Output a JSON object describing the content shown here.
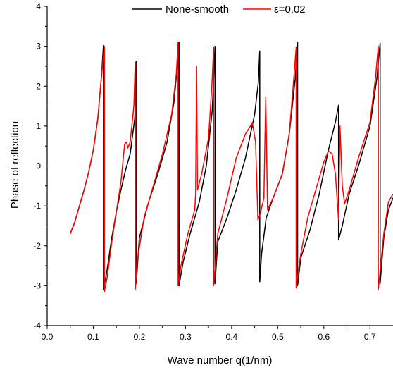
{
  "chart_data": {
    "type": "line",
    "title": "",
    "xlabel": "Wave number q(1/nm)",
    "ylabel": "Phase of reflection",
    "xlim": [
      0.0,
      0.75
    ],
    "ylim": [
      -4,
      4
    ],
    "xticks": [
      0.0,
      0.1,
      0.2,
      0.3,
      0.4,
      0.5,
      0.6,
      0.7
    ],
    "xtick_labels": [
      "0.0",
      "0.1",
      "0.2",
      "0.3",
      "0.4",
      "0.5",
      "0.6",
      "0.7"
    ],
    "yticks": [
      -4,
      -3,
      -2,
      -1,
      0,
      1,
      2,
      3,
      4
    ],
    "ytick_labels": [
      "-4",
      "-3",
      "-2",
      "-1",
      "0",
      "1",
      "2",
      "3",
      "4"
    ],
    "grid": false,
    "legend_position": "top-center",
    "series": [
      {
        "name": "None-smooth",
        "color": "#000000",
        "points": [
          [
            0.05,
            -1.7
          ],
          [
            0.06,
            -1.4
          ],
          [
            0.07,
            -1.0
          ],
          [
            0.08,
            -0.6
          ],
          [
            0.09,
            -0.15
          ],
          [
            0.1,
            0.4
          ],
          [
            0.11,
            1.2
          ],
          [
            0.118,
            2.3
          ],
          [
            0.122,
            3.02
          ],
          [
            0.122,
            -3.1
          ],
          [
            0.13,
            -2.6
          ],
          [
            0.14,
            -1.8
          ],
          [
            0.15,
            -1.15
          ],
          [
            0.16,
            -0.6
          ],
          [
            0.17,
            -0.1
          ],
          [
            0.18,
            0.3
          ],
          [
            0.19,
            1.2
          ],
          [
            0.193,
            2.62
          ],
          [
            0.193,
            -2.95
          ],
          [
            0.2,
            -1.8
          ],
          [
            0.22,
            -0.9
          ],
          [
            0.24,
            -0.2
          ],
          [
            0.26,
            0.6
          ],
          [
            0.275,
            1.6
          ],
          [
            0.283,
            2.6
          ],
          [
            0.286,
            3.1
          ],
          [
            0.286,
            -3.0
          ],
          [
            0.295,
            -2.4
          ],
          [
            0.31,
            -1.7
          ],
          [
            0.33,
            -0.9
          ],
          [
            0.345,
            0.0
          ],
          [
            0.358,
            1.4
          ],
          [
            0.364,
            3.0
          ],
          [
            0.364,
            -2.95
          ],
          [
            0.37,
            -1.9
          ],
          [
            0.39,
            -1.3
          ],
          [
            0.41,
            -0.6
          ],
          [
            0.43,
            0.2
          ],
          [
            0.45,
            1.3
          ],
          [
            0.458,
            2.1
          ],
          [
            0.461,
            2.88
          ],
          [
            0.461,
            -2.9
          ],
          [
            0.465,
            -2.2
          ],
          [
            0.475,
            -1.3
          ],
          [
            0.49,
            -0.8
          ],
          [
            0.51,
            -0.2
          ],
          [
            0.525,
            0.8
          ],
          [
            0.538,
            2.2
          ],
          [
            0.543,
            3.1
          ],
          [
            0.543,
            -3.0
          ],
          [
            0.55,
            -2.3
          ],
          [
            0.57,
            -1.6
          ],
          [
            0.59,
            -0.7
          ],
          [
            0.61,
            0.4
          ],
          [
            0.625,
            1.1
          ],
          [
            0.632,
            1.52
          ],
          [
            0.632,
            -1.85
          ],
          [
            0.64,
            -1.5
          ],
          [
            0.655,
            -0.7
          ],
          [
            0.675,
            0.0
          ],
          [
            0.7,
            1.0
          ],
          [
            0.715,
            2.2
          ],
          [
            0.722,
            3.08
          ],
          [
            0.722,
            -2.95
          ],
          [
            0.73,
            -1.8
          ],
          [
            0.74,
            -1.1
          ],
          [
            0.75,
            -0.8
          ]
        ]
      },
      {
        "name": "ε=0.02",
        "color": "#ff0000",
        "points": [
          [
            0.05,
            -1.7
          ],
          [
            0.06,
            -1.4
          ],
          [
            0.07,
            -1.0
          ],
          [
            0.08,
            -0.6
          ],
          [
            0.09,
            -0.15
          ],
          [
            0.1,
            0.4
          ],
          [
            0.11,
            1.2
          ],
          [
            0.118,
            2.3
          ],
          [
            0.124,
            3.0
          ],
          [
            0.124,
            -3.15
          ],
          [
            0.13,
            -2.8
          ],
          [
            0.14,
            -1.9
          ],
          [
            0.15,
            -1.15
          ],
          [
            0.16,
            -0.4
          ],
          [
            0.168,
            0.55
          ],
          [
            0.172,
            0.6
          ],
          [
            0.175,
            0.45
          ],
          [
            0.18,
            0.6
          ],
          [
            0.188,
            1.5
          ],
          [
            0.191,
            2.6
          ],
          [
            0.191,
            -3.1
          ],
          [
            0.195,
            -2.4
          ],
          [
            0.21,
            -1.3
          ],
          [
            0.23,
            -0.5
          ],
          [
            0.25,
            0.3
          ],
          [
            0.27,
            1.3
          ],
          [
            0.28,
            2.3
          ],
          [
            0.284,
            3.1
          ],
          [
            0.284,
            -3.0
          ],
          [
            0.29,
            -2.5
          ],
          [
            0.305,
            -1.7
          ],
          [
            0.32,
            -1.1
          ],
          [
            0.322,
            -0.7
          ],
          [
            0.324,
            2.5
          ],
          [
            0.326,
            -0.6
          ],
          [
            0.335,
            -0.2
          ],
          [
            0.35,
            0.7
          ],
          [
            0.358,
            2.2
          ],
          [
            0.361,
            2.98
          ],
          [
            0.361,
            -3.0
          ],
          [
            0.37,
            -1.7
          ],
          [
            0.39,
            -0.8
          ],
          [
            0.41,
            0.2
          ],
          [
            0.43,
            0.8
          ],
          [
            0.445,
            1.08
          ],
          [
            0.452,
            0.6
          ],
          [
            0.457,
            -1.35
          ],
          [
            0.462,
            -1.2
          ],
          [
            0.47,
            -0.8
          ],
          [
            0.474,
            1.72
          ],
          [
            0.478,
            -1.1
          ],
          [
            0.49,
            -0.8
          ],
          [
            0.51,
            -0.2
          ],
          [
            0.525,
            0.8
          ],
          [
            0.535,
            2.2
          ],
          [
            0.54,
            2.98
          ],
          [
            0.54,
            -3.05
          ],
          [
            0.55,
            -2.2
          ],
          [
            0.565,
            -1.3
          ],
          [
            0.58,
            -0.7
          ],
          [
            0.6,
            0.1
          ],
          [
            0.61,
            0.38
          ],
          [
            0.618,
            0.3
          ],
          [
            0.625,
            -0.2
          ],
          [
            0.632,
            -1.35
          ],
          [
            0.635,
            1.0
          ],
          [
            0.64,
            -0.5
          ],
          [
            0.645,
            -0.95
          ],
          [
            0.655,
            -0.6
          ],
          [
            0.675,
            0.2
          ],
          [
            0.7,
            1.1
          ],
          [
            0.712,
            2.2
          ],
          [
            0.718,
            3.0
          ],
          [
            0.718,
            -3.1
          ],
          [
            0.73,
            -1.7
          ],
          [
            0.74,
            -0.9
          ],
          [
            0.75,
            -0.7
          ]
        ]
      }
    ]
  }
}
